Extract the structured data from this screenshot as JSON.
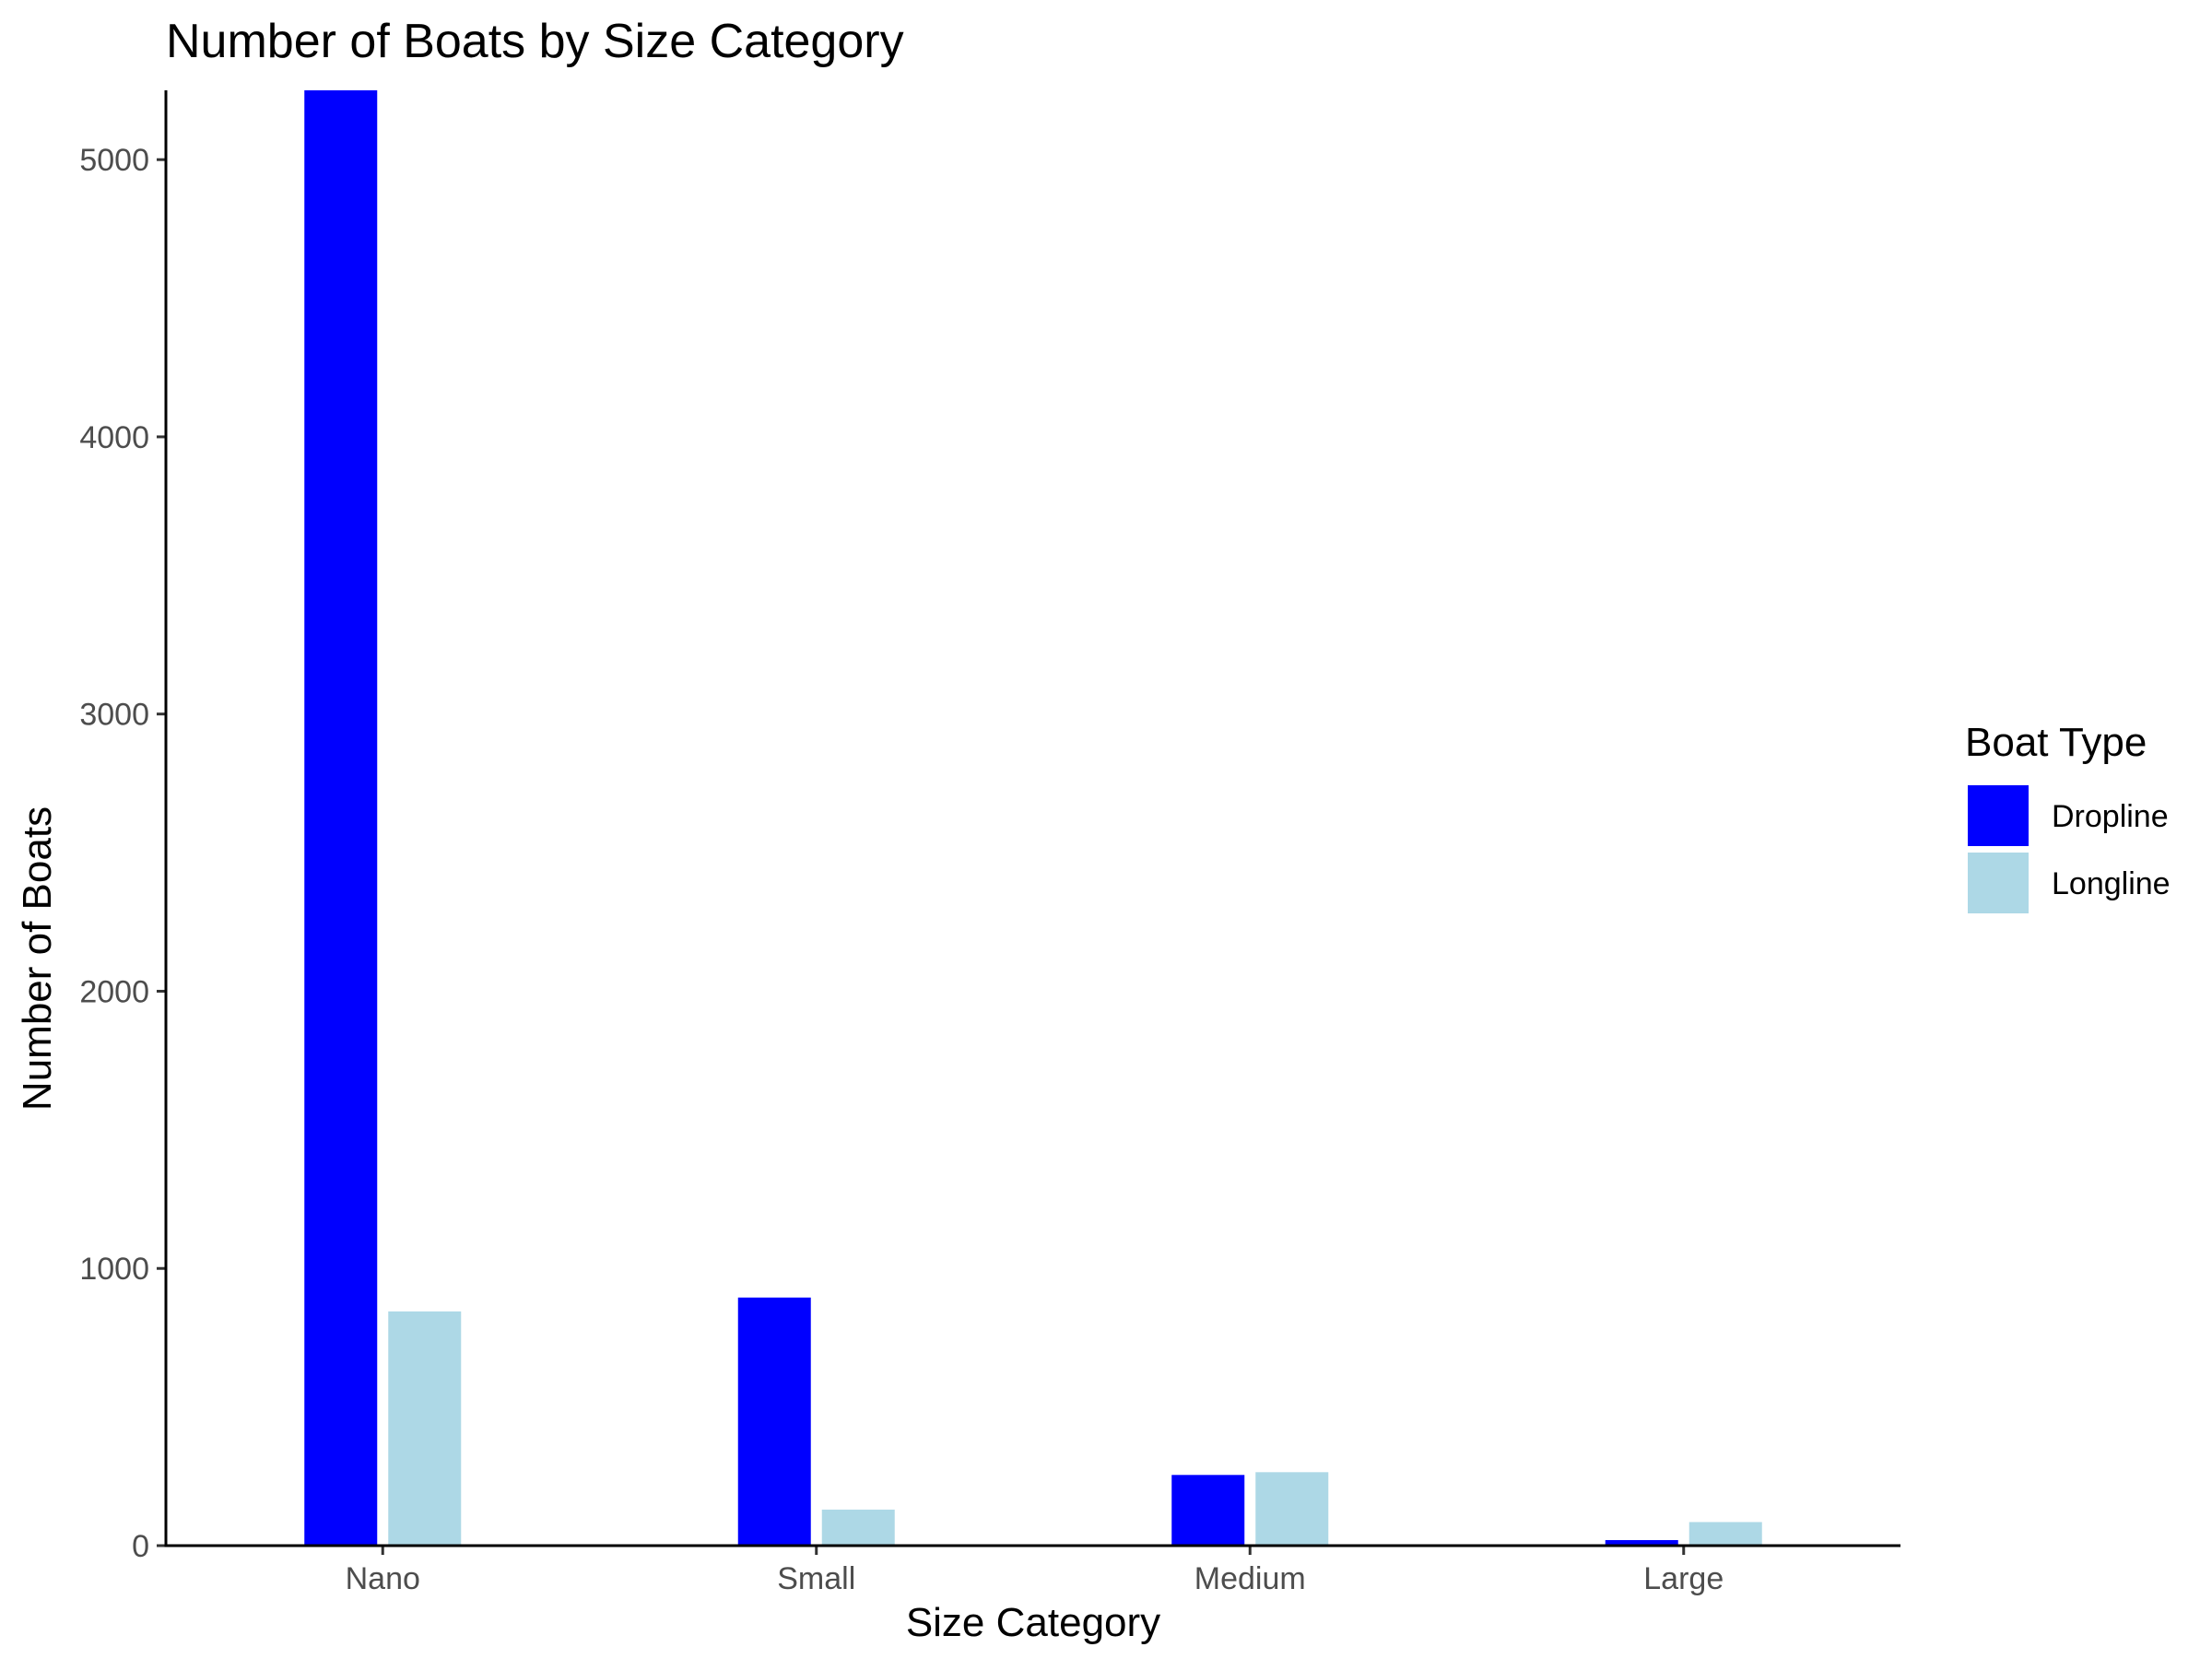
{
  "chart_data": {
    "type": "bar",
    "title": "Number of Boats by Size Category",
    "xlabel": "Size Category",
    "ylabel": "Number of Boats",
    "categories": [
      "Nano",
      "Small",
      "Medium",
      "Large"
    ],
    "series": [
      {
        "name": "Dropline",
        "color": "#0000ff",
        "values": [
          5250,
          895,
          255,
          20
        ]
      },
      {
        "name": "Longline",
        "color": "#add8e6",
        "values": [
          845,
          130,
          265,
          85
        ]
      }
    ],
    "ylim": [
      0,
      5250
    ],
    "yticks": [
      0,
      1000,
      2000,
      3000,
      4000,
      5000
    ],
    "legend": {
      "title": "Boat Type",
      "position": "right"
    },
    "grid": false
  }
}
